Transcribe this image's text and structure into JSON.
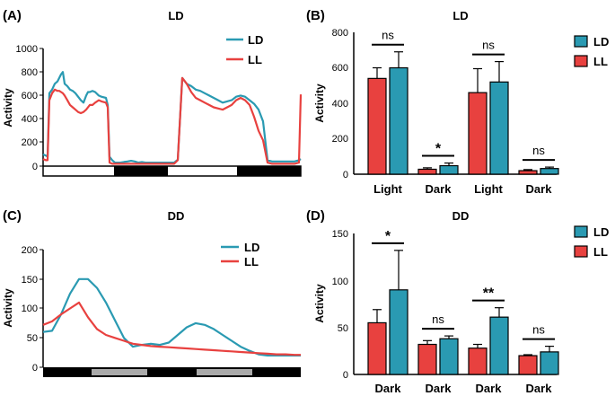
{
  "colors": {
    "ld": "#2a9ab2",
    "ll": "#e8413f",
    "ink": "#000000",
    "gray": "#aaaaaa"
  },
  "chart_data": [
    {
      "panel": "(A)",
      "type": "line",
      "title": "LD",
      "ylabel": "Activity",
      "ylim": [
        0,
        1000
      ],
      "yticks": [
        "1000",
        "800",
        "600",
        "400",
        "200",
        "0"
      ],
      "legend": [
        "LD",
        "LL"
      ],
      "legend_position": "top-right",
      "x": [
        0,
        3,
        5,
        7,
        10,
        13,
        16,
        18,
        20,
        22,
        24,
        27,
        30,
        33,
        36,
        39,
        42,
        45,
        48,
        50,
        52,
        55,
        58,
        62,
        65,
        70,
        72,
        74,
        77,
        80,
        83,
        86,
        90,
        94,
        98,
        102,
        106,
        110,
        114,
        118,
        122,
        126,
        130,
        134,
        138,
        142,
        146,
        150,
        155,
        160,
        165,
        170,
        175,
        180,
        185,
        190,
        195,
        200,
        205,
        210,
        215,
        220,
        225,
        230,
        235,
        240,
        245,
        250,
        255,
        260,
        265,
        270,
        275,
        280,
        285,
        287
      ],
      "series": [
        {
          "name": "LD",
          "values": [
            100,
            90,
            80,
            620,
            650,
            700,
            720,
            750,
            780,
            800,
            700,
            680,
            650,
            640,
            620,
            590,
            560,
            540,
            600,
            630,
            630,
            640,
            630,
            600,
            590,
            580,
            520,
            80,
            50,
            30,
            30,
            30,
            35,
            40,
            45,
            40,
            30,
            35,
            30,
            30,
            30,
            30,
            30,
            30,
            30,
            30,
            30,
            55,
            750,
            700,
            680,
            650,
            640,
            620,
            600,
            580,
            560,
            540,
            550,
            560,
            590,
            600,
            590,
            560,
            530,
            480,
            380,
            50,
            40,
            40,
            40,
            40,
            40,
            40,
            50,
            60
          ]
        },
        {
          "name": "LL",
          "values": [
            60,
            50,
            50,
            560,
            620,
            650,
            640,
            640,
            630,
            620,
            600,
            560,
            520,
            500,
            480,
            460,
            450,
            460,
            480,
            500,
            520,
            520,
            540,
            560,
            550,
            540,
            500,
            30,
            20,
            20,
            20,
            20,
            20,
            20,
            20,
            20,
            20,
            20,
            20,
            20,
            20,
            20,
            20,
            20,
            20,
            20,
            20,
            50,
            750,
            700,
            630,
            580,
            560,
            540,
            520,
            500,
            490,
            480,
            500,
            520,
            560,
            580,
            560,
            520,
            420,
            300,
            220,
            30,
            20,
            20,
            20,
            20,
            20,
            20,
            30,
            610
          ]
        }
      ],
      "bar_legend": "light-dark bar: white / black / white / black"
    },
    {
      "panel": "(B)",
      "type": "bar",
      "title": "LD",
      "ylabel": "Activity",
      "ylim": [
        0,
        800
      ],
      "yticks": [
        "800",
        "600",
        "400",
        "200",
        "0"
      ],
      "categories": [
        "Light",
        "Dark",
        "Light",
        "Dark"
      ],
      "legend": [
        "LD",
        "LL"
      ],
      "legend_position": "top-right",
      "series": [
        {
          "name": "LL",
          "values": [
            540,
            28,
            460,
            20
          ],
          "errors": [
            60,
            8,
            135,
            6
          ]
        },
        {
          "name": "LD",
          "values": [
            600,
            48,
            520,
            32
          ],
          "errors": [
            90,
            15,
            115,
            8
          ]
        }
      ],
      "annotations": [
        "ns",
        "*",
        "ns",
        "ns"
      ]
    },
    {
      "panel": "(C)",
      "type": "line",
      "title": "DD",
      "ylabel": "Activity",
      "ylim": [
        0,
        200
      ],
      "yticks": [
        "200",
        "150",
        "100",
        "50",
        "0"
      ],
      "legend": [
        "LD",
        "LL"
      ],
      "legend_position": "top-right",
      "x": [
        0,
        10,
        20,
        30,
        40,
        50,
        60,
        70,
        80,
        90,
        100,
        110,
        120,
        130,
        140,
        150,
        160,
        170,
        180,
        190,
        200,
        210,
        220,
        230,
        240,
        250,
        260,
        270,
        280,
        287
      ],
      "series": [
        {
          "name": "LD",
          "values": [
            60,
            62,
            90,
            125,
            150,
            150,
            135,
            110,
            80,
            50,
            35,
            38,
            40,
            38,
            42,
            55,
            68,
            75,
            72,
            65,
            55,
            45,
            35,
            28,
            22,
            20,
            20,
            20,
            20,
            20
          ]
        },
        {
          "name": "LL",
          "values": [
            72,
            78,
            90,
            100,
            110,
            85,
            65,
            55,
            50,
            45,
            40,
            38,
            36,
            35,
            34,
            33,
            32,
            31,
            30,
            29,
            28,
            27,
            26,
            25,
            24,
            23,
            22,
            22,
            21,
            21
          ]
        }
      ],
      "bar_legend": "subjective day/night bar: black / gray / black / gray / black"
    },
    {
      "panel": "(D)",
      "type": "bar",
      "title": "DD",
      "ylabel": "Activity",
      "ylim": [
        0,
        150
      ],
      "yticks": [
        "150",
        "100",
        "50",
        "0"
      ],
      "categories": [
        "Dark",
        "Dark",
        "Dark",
        "Dark"
      ],
      "legend": [
        "LD",
        "LL"
      ],
      "legend_position": "top-right",
      "series": [
        {
          "name": "LL",
          "values": [
            55,
            32,
            28,
            20
          ],
          "errors": [
            14,
            4,
            4,
            1
          ]
        },
        {
          "name": "LD",
          "values": [
            90,
            38,
            61,
            24
          ],
          "errors": [
            42,
            3,
            10,
            6
          ]
        }
      ],
      "annotations": [
        "*",
        "ns",
        "**",
        "ns"
      ]
    }
  ]
}
